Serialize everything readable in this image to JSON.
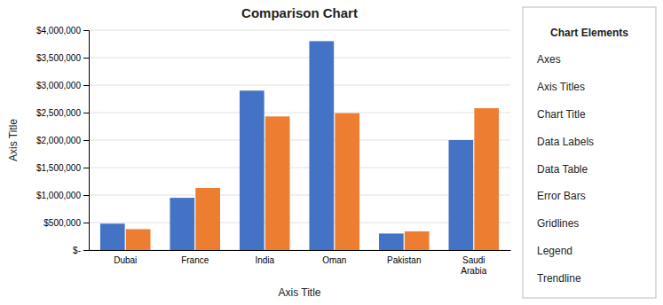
{
  "chart_data": {
    "type": "bar",
    "title": "Comparison Chart",
    "categories": [
      "Dubai",
      "France",
      "India",
      "Oman",
      "Pakistan",
      "Saudi\nArabia"
    ],
    "series": [
      {
        "color": "#4472C4",
        "values": [
          480000,
          950000,
          2900000,
          3800000,
          300000,
          2000000
        ]
      },
      {
        "color": "#ED7D31",
        "values": [
          380000,
          1130000,
          2430000,
          2490000,
          340000,
          2580000
        ]
      }
    ],
    "xlabel": "Axis Title",
    "ylabel": "Axis Title",
    "ylim": [
      0,
      4000000
    ],
    "yticks": [
      {
        "value": 0,
        "label": "$-"
      },
      {
        "value": 500000,
        "label": "$500,000"
      },
      {
        "value": 1000000,
        "label": "$1,000,000"
      },
      {
        "value": 1500000,
        "label": "$1,500,000"
      },
      {
        "value": 2000000,
        "label": "$2,000,000"
      },
      {
        "value": 2500000,
        "label": "$2,500,000"
      },
      {
        "value": 3000000,
        "label": "$3,000,000"
      },
      {
        "value": 3500000,
        "label": "$3,500,000"
      },
      {
        "value": 4000000,
        "label": "$4,000,000"
      }
    ],
    "grid": true,
    "annotations": [
      "Chart Elements",
      "Axes",
      "Axis Titles",
      "Chart Title",
      "Data Labels",
      "Data Table",
      "Error Bars",
      "Gridlines",
      "Legend",
      "Trendline"
    ]
  }
}
